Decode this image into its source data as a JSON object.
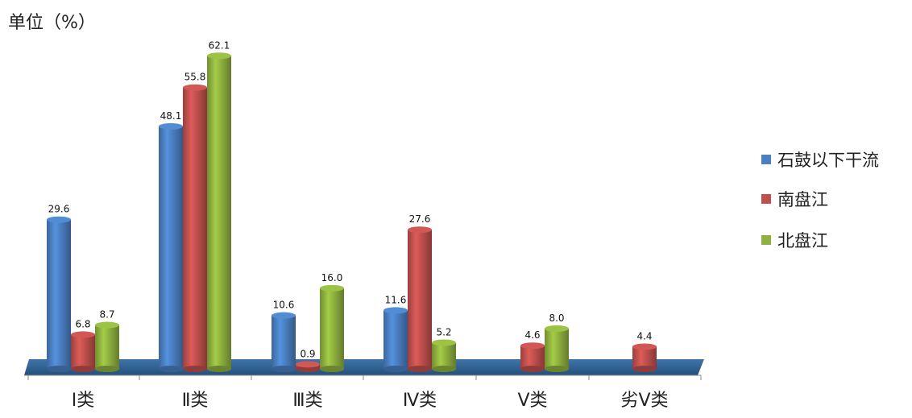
{
  "chart_data": {
    "type": "bar",
    "unit_label": "单位（%）",
    "categories": [
      "Ⅰ类",
      "Ⅱ类",
      "Ⅲ类",
      "Ⅳ类",
      "Ⅴ类",
      "劣Ⅴ类"
    ],
    "series": [
      {
        "name": "石鼓以下干流",
        "color": "#4a7fc1",
        "values": [
          29.6,
          48.1,
          10.6,
          11.6,
          null,
          null
        ]
      },
      {
        "name": "南盘江",
        "color": "#c0504d",
        "values": [
          6.8,
          55.8,
          0.9,
          27.6,
          4.6,
          4.4
        ]
      },
      {
        "name": "北盘江",
        "color": "#8fb13f",
        "values": [
          8.7,
          62.1,
          16.0,
          5.2,
          8.0,
          null
        ]
      }
    ],
    "data_labels": [
      [
        "29.6",
        "48.1",
        "10.6",
        "11.6",
        "",
        ""
      ],
      [
        "6.8",
        "55.8",
        "0.9",
        "27.6",
        "4.6",
        "4.4"
      ],
      [
        "8.7",
        "62.1",
        "16.0",
        "5.2",
        "8.0",
        ""
      ]
    ],
    "ylim": [
      0,
      70
    ],
    "grid": false,
    "legend_position": "right",
    "floor_color": "#2e5c8a"
  }
}
